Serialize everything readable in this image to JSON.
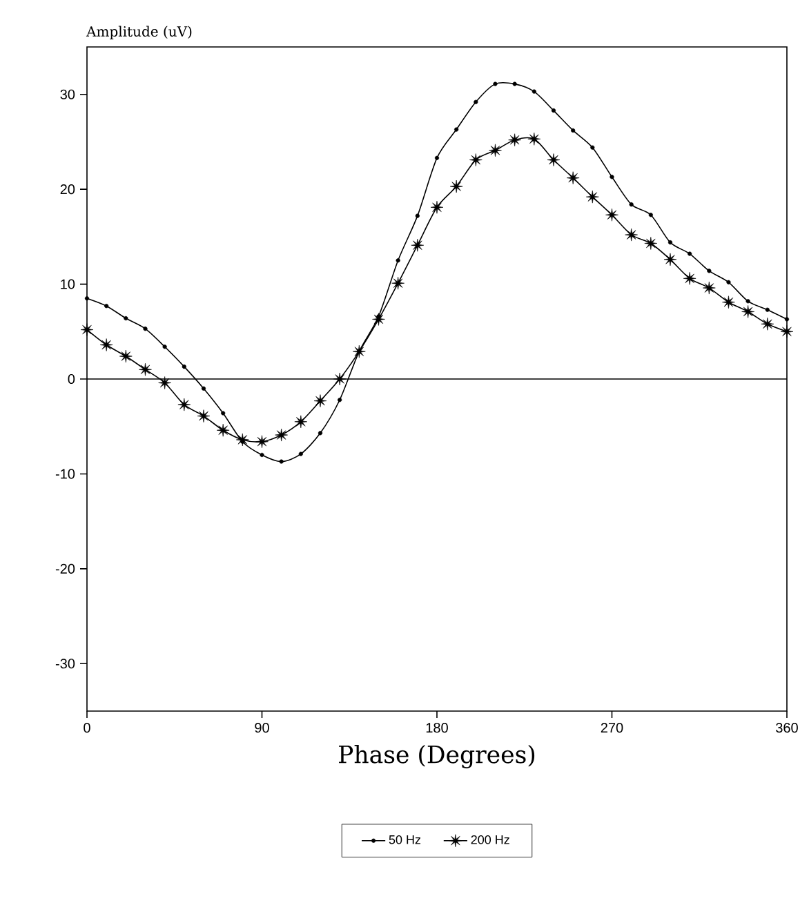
{
  "chart_data": {
    "type": "line",
    "xlabel": "Phase (Degrees)",
    "ylabel": "Amplitude (uV)",
    "x": [
      0,
      10,
      20,
      30,
      40,
      50,
      60,
      70,
      80,
      90,
      100,
      110,
      120,
      130,
      140,
      150,
      160,
      170,
      180,
      190,
      200,
      210,
      220,
      230,
      240,
      250,
      260,
      270,
      280,
      290,
      300,
      310,
      320,
      330,
      340,
      350,
      360
    ],
    "series": [
      {
        "name": "50 Hz",
        "color": "#000000",
        "marker": "circle",
        "values": [
          8.5,
          7.7,
          6.4,
          5.3,
          3.4,
          1.3,
          -1.0,
          -3.6,
          -6.6,
          -8.0,
          -8.7,
          -7.9,
          -5.7,
          -2.2,
          2.9,
          6.6,
          12.5,
          17.2,
          23.3,
          26.3,
          29.2,
          31.1,
          31.1,
          30.3,
          28.3,
          26.2,
          24.4,
          21.3,
          18.4,
          17.3,
          14.4,
          13.2,
          11.4,
          10.2,
          8.2,
          7.3,
          6.3
        ]
      },
      {
        "name": "200 Hz",
        "color": "#000000",
        "marker": "star",
        "values": [
          5.2,
          3.6,
          2.4,
          1.0,
          -0.4,
          -2.7,
          -3.9,
          -5.4,
          -6.4,
          -6.6,
          -5.9,
          -4.5,
          -2.3,
          0,
          2.9,
          6.3,
          10.1,
          14.1,
          18.1,
          20.3,
          23.1,
          24.1,
          25.2,
          25.3,
          23.1,
          21.2,
          19.2,
          17.3,
          15.2,
          14.3,
          12.6,
          10.6,
          9.6,
          8.1,
          7.1,
          5.8,
          5.0
        ]
      }
    ],
    "xlim": [
      0,
      360
    ],
    "xticks": [
      0,
      90,
      180,
      270,
      360
    ],
    "ylim": [
      -35,
      35
    ],
    "yticks": [
      -30,
      -20,
      -10,
      0,
      10,
      20,
      30
    ],
    "ref_lines": [
      {
        "axis": "y",
        "value": 0,
        "color": "#000000"
      }
    ],
    "grid": false,
    "legend": "bottom",
    "line_style": "solid"
  }
}
